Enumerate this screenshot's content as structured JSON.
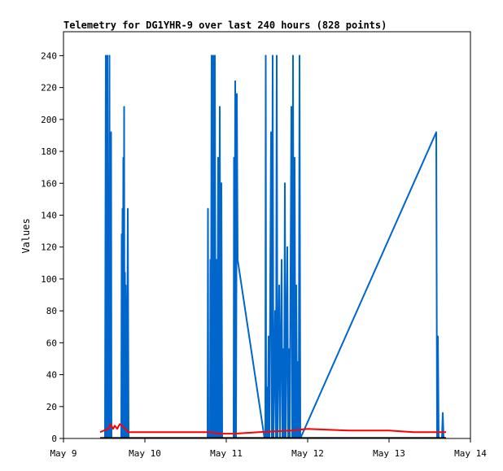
{
  "chart_data": {
    "type": "line",
    "title": "Telemetry for DG1YHR-9 over last 240 hours (828 points)",
    "xlabel": "",
    "ylabel": "Values",
    "x_ticks": [
      "May 9",
      "May 10",
      "May 11",
      "May 12",
      "May 13",
      "May 14"
    ],
    "y_ticks": [
      0,
      20,
      40,
      60,
      80,
      100,
      120,
      140,
      160,
      180,
      200,
      220,
      240
    ],
    "xlim": [
      9.0,
      14.0
    ],
    "ylim": [
      0,
      255
    ],
    "grid": false,
    "colors": {
      "series_blue": "#0066cc",
      "series_red": "#ff0000",
      "series_black": "#000000"
    },
    "series": [
      {
        "color": "#0066cc",
        "points": [
          [
            9.51,
            0
          ],
          [
            9.52,
            240
          ],
          [
            9.53,
            0
          ],
          [
            9.54,
            240
          ],
          [
            9.55,
            0
          ],
          [
            9.555,
            112
          ],
          [
            9.56,
            0
          ],
          [
            9.565,
            240
          ],
          [
            9.57,
            0
          ],
          [
            9.575,
            160
          ],
          [
            9.58,
            0
          ],
          [
            9.585,
            192
          ],
          [
            9.59,
            0
          ],
          [
            9.71,
            0
          ],
          [
            9.715,
            128
          ],
          [
            9.72,
            0
          ],
          [
            9.725,
            144
          ],
          [
            9.73,
            0
          ],
          [
            9.735,
            176
          ],
          [
            9.74,
            0
          ],
          [
            9.745,
            208
          ],
          [
            9.75,
            0
          ],
          [
            9.755,
            104
          ],
          [
            9.76,
            0
          ],
          [
            9.765,
            96
          ],
          [
            9.77,
            0
          ],
          [
            9.775,
            88
          ],
          [
            9.78,
            0
          ],
          [
            9.79,
            144
          ],
          [
            9.8,
            0
          ],
          [
            10.77,
            0
          ],
          [
            10.775,
            144
          ],
          [
            10.78,
            0
          ],
          [
            10.8,
            0
          ],
          [
            10.805,
            112
          ],
          [
            10.81,
            0
          ],
          [
            10.82,
            240
          ],
          [
            10.83,
            0
          ],
          [
            10.84,
            240
          ],
          [
            10.85,
            0
          ],
          [
            10.86,
            240
          ],
          [
            10.87,
            0
          ],
          [
            10.88,
            112
          ],
          [
            10.89,
            0
          ],
          [
            10.9,
            176
          ],
          [
            10.91,
            0
          ],
          [
            10.92,
            208
          ],
          [
            10.93,
            0
          ],
          [
            10.94,
            160
          ],
          [
            10.95,
            0
          ],
          [
            11.09,
            0
          ],
          [
            11.095,
            176
          ],
          [
            11.1,
            0
          ],
          [
            11.11,
            224
          ],
          [
            11.12,
            0
          ],
          [
            11.13,
            216
          ],
          [
            11.14,
            112
          ],
          [
            11.47,
            0
          ],
          [
            11.48,
            0
          ],
          [
            11.485,
            240
          ],
          [
            11.49,
            0
          ],
          [
            11.5,
            32
          ],
          [
            11.51,
            0
          ],
          [
            11.52,
            64
          ],
          [
            11.53,
            0
          ],
          [
            11.55,
            192
          ],
          [
            11.56,
            0
          ],
          [
            11.57,
            240
          ],
          [
            11.58,
            0
          ],
          [
            11.6,
            80
          ],
          [
            11.61,
            0
          ],
          [
            11.62,
            240
          ],
          [
            11.63,
            0
          ],
          [
            11.65,
            96
          ],
          [
            11.66,
            0
          ],
          [
            11.68,
            112
          ],
          [
            11.69,
            0
          ],
          [
            11.7,
            56
          ],
          [
            11.71,
            0
          ],
          [
            11.72,
            160
          ],
          [
            11.73,
            0
          ],
          [
            11.75,
            120
          ],
          [
            11.76,
            0
          ],
          [
            11.77,
            56
          ],
          [
            11.78,
            0
          ],
          [
            11.8,
            208
          ],
          [
            11.81,
            0
          ],
          [
            11.82,
            240
          ],
          [
            11.83,
            0
          ],
          [
            11.84,
            176
          ],
          [
            11.85,
            0
          ],
          [
            11.86,
            96
          ],
          [
            11.87,
            0
          ],
          [
            11.88,
            48
          ],
          [
            11.89,
            0
          ],
          [
            11.9,
            240
          ],
          [
            11.91,
            0
          ],
          [
            13.58,
            192
          ],
          [
            13.59,
            0
          ],
          [
            13.6,
            64
          ],
          [
            13.61,
            0
          ],
          [
            13.65,
            0
          ],
          [
            13.66,
            16
          ],
          [
            13.67,
            0
          ]
        ]
      },
      {
        "color": "#ff0000",
        "points": [
          [
            9.45,
            4
          ],
          [
            9.5,
            5
          ],
          [
            9.55,
            6
          ],
          [
            9.58,
            9
          ],
          [
            9.61,
            6
          ],
          [
            9.63,
            8
          ],
          [
            9.66,
            6
          ],
          [
            9.69,
            9
          ],
          [
            9.72,
            8
          ],
          [
            9.8,
            4
          ],
          [
            10.0,
            4
          ],
          [
            10.5,
            4
          ],
          [
            10.8,
            4
          ],
          [
            10.9,
            3
          ],
          [
            11.1,
            3
          ],
          [
            11.4,
            4
          ],
          [
            11.8,
            5
          ],
          [
            12.0,
            6
          ],
          [
            12.5,
            5
          ],
          [
            13.0,
            5
          ],
          [
            13.3,
            4
          ],
          [
            13.7,
            4
          ]
        ]
      },
      {
        "color": "#000000",
        "points": [
          [
            9.45,
            0.3
          ],
          [
            13.7,
            0.3
          ]
        ]
      }
    ]
  }
}
